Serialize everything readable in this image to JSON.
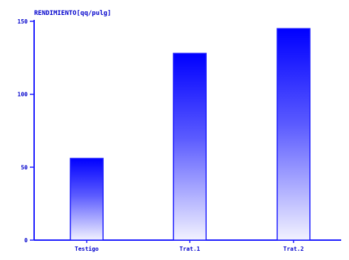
{
  "chart_data": {
    "type": "bar",
    "title": "RENDIMIENTO[qq/pulg]",
    "xlabel": "",
    "ylabel": "",
    "categories": [
      "Testigo",
      "Trat.1",
      "Trat.2"
    ],
    "values": [
      56,
      128,
      145
    ],
    "ylim": [
      0,
      150
    ],
    "yticks": [
      0,
      50,
      100,
      150
    ],
    "ytick_labels": [
      "0",
      "50",
      "100",
      "150"
    ],
    "grid": false,
    "legend": "none",
    "colors": {
      "axis": "#1818ff",
      "text": "#0000cc",
      "bar_top": "#0000ff",
      "bar_bottom": "#f2f2ff",
      "bar_outline": "#1a1aff"
    }
  }
}
